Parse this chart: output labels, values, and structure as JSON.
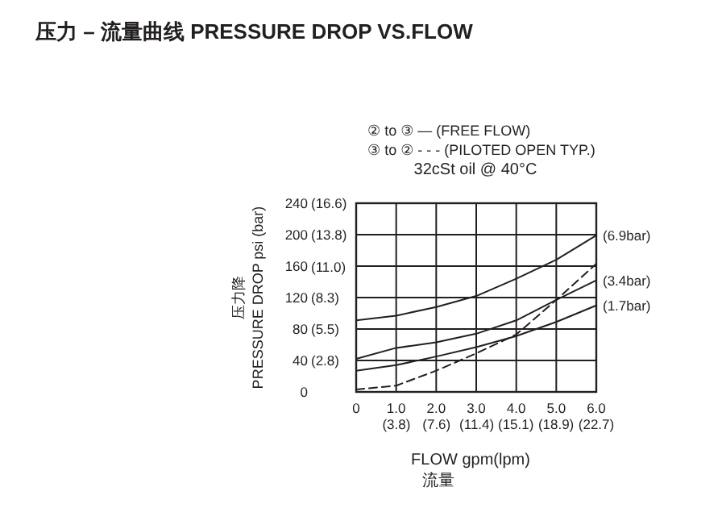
{
  "chart_data": {
    "type": "line",
    "title": "压力 – 流量曲线 PRESSURE DROP VS.FLOW",
    "subtitle": "32cSt oil @ 40°C",
    "xlabel": "FLOW gpm(lpm)\n流量",
    "ylabel": "压力降\nPRESSURE DROP psi (bar)",
    "annotations": [
      "② to ③ —   (FREE FLOW)",
      "③ to ② - - -   (PILOTED OPEN TYP.)"
    ],
    "x": [
      0,
      1,
      2,
      3,
      4,
      5,
      6
    ],
    "series": [
      {
        "name": "(6.9bar)",
        "color": "#231f20",
        "line_style": "solid",
        "values": [
          91,
          97,
          108,
          122,
          144,
          168,
          199
        ]
      },
      {
        "name": "(3.4bar)",
        "color": "#231f20",
        "line_style": "solid",
        "values": [
          42,
          56,
          63,
          74,
          91,
          117,
          142
        ]
      },
      {
        "name": "(1.7bar)",
        "color": "#231f20",
        "line_style": "solid",
        "values": [
          27,
          34,
          45,
          57,
          71,
          89,
          110
        ]
      },
      {
        "color": "#231f20",
        "line_style": "dashed",
        "values": [
          3,
          8,
          27,
          49,
          73,
          117,
          163
        ]
      }
    ],
    "xlim": [
      0,
      6
    ],
    "ylim": [
      0,
      240
    ],
    "xticks": [
      0,
      {
        "value": 1,
        "label": "1.0"
      },
      {
        "value": 2,
        "label": "2.0"
      },
      {
        "value": 3,
        "label": "3.0"
      },
      {
        "value": 4,
        "label": "4.0"
      },
      {
        "value": 5,
        "label": "5.0"
      },
      {
        "value": 6,
        "label": "6.0"
      }
    ],
    "x2lim": [
      0,
      22.7
    ],
    "x2ticks": [
      {
        "value": 3.8,
        "label": "(3.8)"
      },
      {
        "value": 7.6,
        "label": "(7.6)"
      },
      {
        "value": 11.4,
        "label": "(11.4)"
      },
      {
        "value": 15.1,
        "label": "(15.1)"
      },
      {
        "value": 18.9,
        "label": "(18.9)"
      },
      {
        "value": 22.7,
        "label": "(22.7)"
      }
    ],
    "yticks": [
      0,
      40,
      80,
      120,
      160,
      200,
      240
    ],
    "y2lim": [
      0,
      16.6
    ],
    "y2ticks": [
      {
        "value": 2.8,
        "label": "(2.8)"
      },
      {
        "value": 5.5,
        "label": "(5.5)"
      },
      {
        "value": 8.3,
        "label": "(8.3)"
      },
      {
        "value": 11.0,
        "label": "(11.0)"
      },
      {
        "value": 13.8,
        "label": "(13.8)"
      },
      {
        "value": 16.6,
        "label": "(16.6)"
      }
    ],
    "grid": true,
    "marker": "none"
  }
}
